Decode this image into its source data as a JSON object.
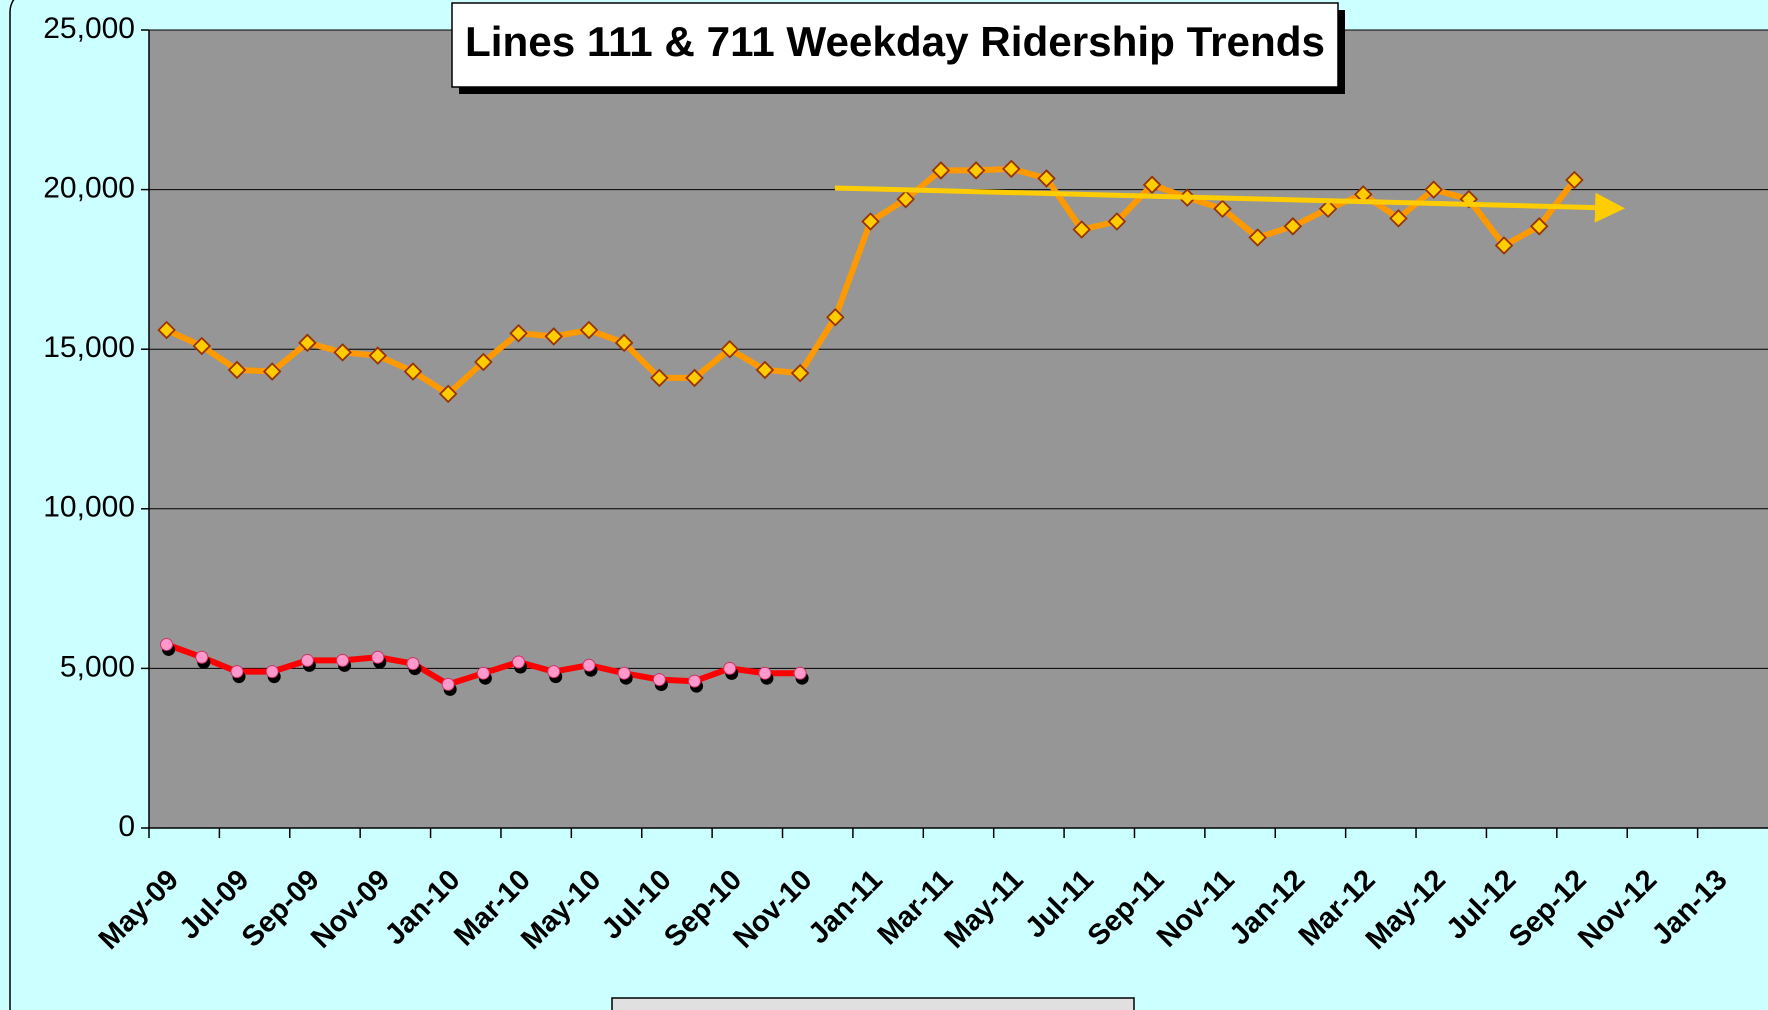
{
  "chart_data": {
    "type": "line",
    "title": "Lines 111 & 711 Weekday Ridership Trends",
    "categories": [
      "May-09",
      null,
      "Jul-09",
      null,
      "Sep-09",
      null,
      "Nov-09",
      null,
      "Jan-10",
      null,
      "Mar-10",
      null,
      "May-10",
      null,
      "Jul-10",
      null,
      "Sep-10",
      null,
      "Nov-10",
      null,
      "Jan-11",
      null,
      "Mar-11",
      null,
      "May-11",
      null,
      "Jul-11",
      null,
      "Sep-11",
      null,
      "Nov-11",
      null,
      "Jan-12",
      null,
      "Mar-12",
      null,
      "May-12",
      null,
      "Jul-12",
      null,
      "Sep-12",
      null,
      "Nov-12",
      null,
      "Jan-13",
      null
    ],
    "series": [
      {
        "color": "#ff9900",
        "marker_color": "#ffcc00",
        "values": [
          15600,
          15100,
          14350,
          14300,
          15200,
          14900,
          14800,
          14300,
          13600,
          14600,
          15500,
          15400,
          15600,
          15200,
          14100,
          14100,
          15000,
          14350,
          14250,
          16000,
          19000,
          19700,
          20600,
          20600,
          20650,
          20350,
          18750,
          19000,
          20150,
          19750,
          19400,
          18500,
          18850,
          19400,
          19850,
          19100,
          20000,
          19700,
          18250,
          18850,
          20300,
          null,
          null,
          null,
          null,
          null
        ]
      },
      {
        "color": "#ff0000",
        "marker_color": "#ff99cc",
        "values": [
          5750,
          5350,
          4900,
          4900,
          5250,
          5250,
          5350,
          5150,
          4500,
          4850,
          5200,
          4900,
          5100,
          4850,
          4650,
          4600,
          5000,
          4850,
          4850,
          null,
          null,
          null,
          null,
          null,
          null,
          null,
          null,
          null,
          null,
          null,
          null,
          null,
          null,
          null,
          null,
          null,
          null,
          null,
          null,
          null,
          null,
          null,
          null,
          null,
          null,
          null
        ]
      }
    ],
    "ylim": [
      0,
      25000
    ],
    "yticks": [
      {
        "value": 0,
        "label": "0"
      },
      {
        "value": 5000,
        "label": "5,000"
      },
      {
        "value": 10000,
        "label": "10,000"
      },
      {
        "value": 15000,
        "label": "15,000"
      },
      {
        "value": 20000,
        "label": "20,000"
      },
      {
        "value": 25000,
        "label": "25,000"
      }
    ],
    "grid": true
  }
}
